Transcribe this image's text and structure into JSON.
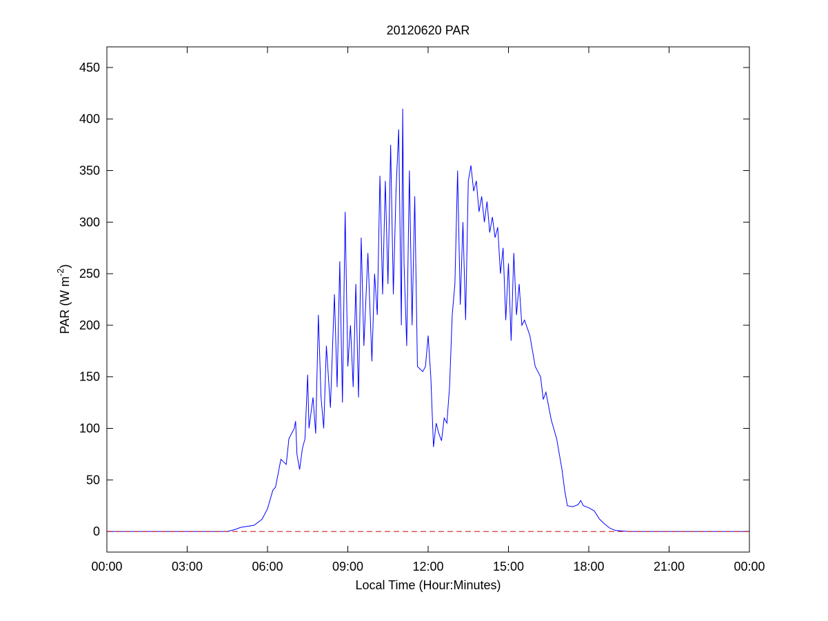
{
  "chart_data": {
    "type": "line",
    "title": "20120620 PAR",
    "x_label": "Local Time (Hour:Minutes)",
    "y_label": [
      "PAR (W m",
      "-2",
      ")"
    ],
    "xlim": [
      0,
      24
    ],
    "xticks": [
      {
        "value": 0,
        "label": "00:00"
      },
      {
        "value": 3,
        "label": "03:00"
      },
      {
        "value": 6,
        "label": "06:00"
      },
      {
        "value": 9,
        "label": "09:00"
      },
      {
        "value": 12,
        "label": "12:00"
      },
      {
        "value": 15,
        "label": "15:00"
      },
      {
        "value": 18,
        "label": "18:00"
      },
      {
        "value": 21,
        "label": "21:00"
      },
      {
        "value": 24,
        "label": "00:00"
      }
    ],
    "ylim": [
      -20,
      470
    ],
    "yticks": [
      0,
      50,
      100,
      150,
      200,
      250,
      300,
      350,
      400,
      450
    ],
    "reference_line": {
      "value": 0,
      "color": "#cc0000",
      "dashed": true
    },
    "series": [
      {
        "color": "#0000ff",
        "x": [
          0,
          4.5,
          4.8,
          5.0,
          5.5,
          5.8,
          6.0,
          6.2,
          6.3,
          6.5,
          6.7,
          6.8,
          7.0,
          7.05,
          7.1,
          7.2,
          7.3,
          7.4,
          7.5,
          7.55,
          7.7,
          7.8,
          7.9,
          8.0,
          8.1,
          8.2,
          8.35,
          8.5,
          8.6,
          8.7,
          8.8,
          8.9,
          9.0,
          9.1,
          9.2,
          9.3,
          9.4,
          9.5,
          9.6,
          9.75,
          9.9,
          10.0,
          10.1,
          10.2,
          10.3,
          10.4,
          10.5,
          10.6,
          10.7,
          10.8,
          10.9,
          11.0,
          11.05,
          11.1,
          11.2,
          11.3,
          11.4,
          11.5,
          11.6,
          11.8,
          11.9,
          12.0,
          12.1,
          12.2,
          12.3,
          12.4,
          12.5,
          12.6,
          12.7,
          12.8,
          12.9,
          13.0,
          13.1,
          13.2,
          13.3,
          13.4,
          13.5,
          13.6,
          13.7,
          13.8,
          13.9,
          14.0,
          14.1,
          14.2,
          14.3,
          14.4,
          14.5,
          14.6,
          14.7,
          14.8,
          14.9,
          15.0,
          15.1,
          15.2,
          15.3,
          15.4,
          15.5,
          15.6,
          15.8,
          16.0,
          16.2,
          16.3,
          16.4,
          16.6,
          16.8,
          17.0,
          17.1,
          17.2,
          17.4,
          17.6,
          17.7,
          17.8,
          18.0,
          18.2,
          18.4,
          18.6,
          18.8,
          19.0,
          19.5,
          24
        ],
        "values": [
          0,
          0,
          2,
          4,
          6,
          12,
          22,
          40,
          43,
          70,
          65,
          90,
          100,
          107,
          75,
          60,
          80,
          90,
          152,
          100,
          130,
          95,
          210,
          130,
          100,
          180,
          120,
          230,
          140,
          262,
          125,
          310,
          160,
          200,
          140,
          240,
          130,
          285,
          180,
          270,
          165,
          250,
          210,
          345,
          230,
          340,
          240,
          375,
          230,
          330,
          390,
          200,
          410,
          260,
          180,
          350,
          200,
          325,
          160,
          155,
          160,
          190,
          150,
          82,
          105,
          95,
          88,
          110,
          105,
          140,
          210,
          240,
          350,
          220,
          300,
          205,
          340,
          355,
          330,
          340,
          310,
          325,
          300,
          320,
          290,
          305,
          285,
          295,
          250,
          275,
          205,
          260,
          185,
          270,
          210,
          240,
          200,
          205,
          190,
          160,
          150,
          128,
          135,
          108,
          90,
          60,
          40,
          25,
          24,
          26,
          30,
          25,
          23,
          20,
          12,
          7,
          3,
          1,
          0,
          0
        ]
      }
    ]
  }
}
